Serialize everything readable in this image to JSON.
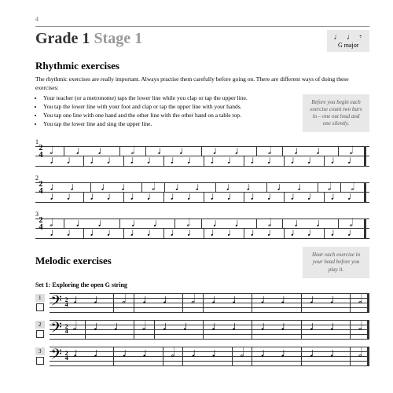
{
  "page_number": "4",
  "title_grade": "Grade 1",
  "title_stage": "Stage 1",
  "key_box": {
    "notes": "♩ ♩ 𝄾",
    "key": "G major"
  },
  "rhythmic": {
    "heading": "Rhythmic exercises",
    "intro": "The rhythmic exercises are really important. Always practise them carefully before going on. There are different ways of doing these exercises:",
    "bullets": [
      "Your teacher (or a metronome) taps the lower line while you clap or tap the upper line.",
      "You tap the lower line with your foot and clap or tap the upper line with your hands.",
      "You tap one line with one hand and the other line with the other hand on a table top.",
      "You tap the lower line and sing the upper line."
    ],
    "tip": "Before you begin each exercise count two bars in – one out loud and one silently.",
    "ex": [
      {
        "num": "1",
        "ts_top": "2",
        "ts_bot": "4"
      },
      {
        "num": "2",
        "ts_top": "2",
        "ts_bot": "4"
      },
      {
        "num": "3",
        "ts_top": "2",
        "ts_bot": "4"
      }
    ]
  },
  "melodic": {
    "heading": "Melodic exercises",
    "set": "Set 1: Exploring the open G string",
    "tip": "Hear each exercise in your head before you play it.",
    "ex": [
      {
        "num": "1",
        "ts_top": "2",
        "ts_bot": "4"
      },
      {
        "num": "2",
        "ts_top": "2",
        "ts_bot": "4"
      },
      {
        "num": "3",
        "ts_top": "2",
        "ts_bot": "4"
      }
    ],
    "clef": "𝄢"
  },
  "glyphs": {
    "q": "♩",
    "h": "𝅗𝅥",
    "e": "♪"
  },
  "colors": {
    "bg": "#ffffff",
    "box": "#e8e8e8",
    "text": "#333333",
    "muted": "#999999"
  }
}
